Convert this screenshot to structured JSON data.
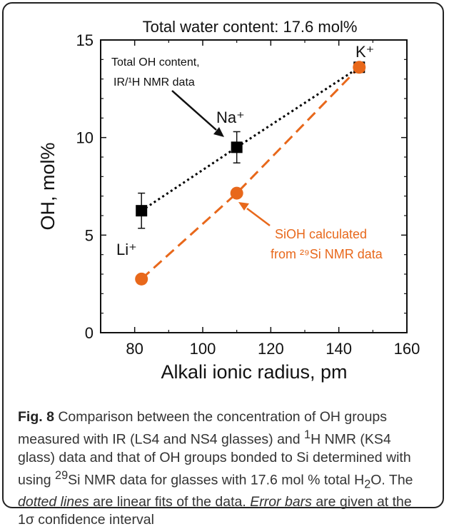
{
  "chart_data": {
    "type": "line",
    "title": "Total water content: 17.6 mol%",
    "xlabel": "Alkali ionic radius, pm",
    "ylabel": "OH, mol%",
    "xlim": [
      70,
      160
    ],
    "ylim": [
      0,
      15
    ],
    "xticks": [
      "80",
      "100",
      "120",
      "140",
      "160"
    ],
    "yticks": [
      "0",
      "5",
      "10",
      "15"
    ],
    "grid": false,
    "series": [
      {
        "name": "Total OH content, IR/¹H NMR data",
        "marker": "square",
        "color": "#000000",
        "linestyle": "dotted",
        "x": [
          82,
          110,
          146
        ],
        "y": [
          6.25,
          9.5,
          13.6
        ],
        "error": [
          0.9,
          0.8,
          0
        ]
      },
      {
        "name": "SiOH calculated from ²⁹Si NMR data",
        "marker": "circle",
        "color": "#e8681b",
        "linestyle": "dashed",
        "x": [
          82,
          110,
          146
        ],
        "y": [
          2.75,
          7.15,
          13.6
        ]
      }
    ],
    "point_labels": [
      "Li⁺",
      "Na⁺",
      "K⁺"
    ],
    "annotations": {
      "black_line1": "Total OH content,",
      "black_line2": "IR/¹H NMR data",
      "orange_line1": "SiOH calculated",
      "orange_line2": "from ²⁹Si NMR data"
    }
  },
  "caption": {
    "fig_label": "Fig. 8",
    "p1": " Comparison between the concentration of OH groups measured with IR (LS4 and NS4 glasses) and ",
    "sup1": "1",
    "p2": "H NMR (KS4 glass) data and that of OH groups bonded to Si determined with using ",
    "sup2": "29",
    "p3": "Si NMR data for glasses with 17.6 mol % total H",
    "sub": "2",
    "p4": "O. The ",
    "em1": "dotted lines",
    "p5": " are linear fits of the data. ",
    "em2": "Error bars",
    "p6": " are given at the 1σ confidence interval"
  }
}
